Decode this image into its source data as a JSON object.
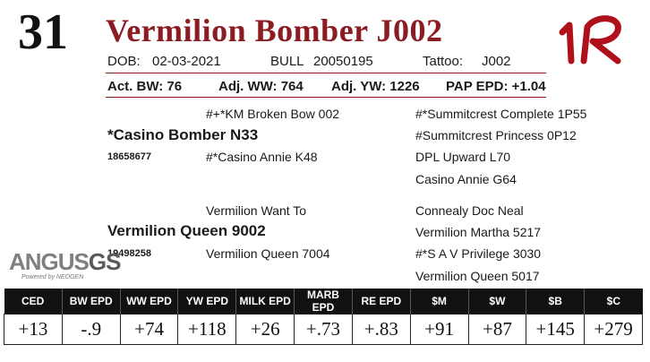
{
  "lot_number": "31",
  "animal_name": "Vermilion Bomber J002",
  "brand_mark": "1R",
  "info": {
    "dob_label": "DOB:",
    "dob": "02-03-2021",
    "bull_label": "BULL",
    "bull_id": "20050195",
    "tattoo_label": "Tattoo:",
    "tattoo": "J002"
  },
  "stats": {
    "act_bw": "Act. BW: 76",
    "adj_ww": "Adj. WW: 764",
    "adj_yw": "Adj. YW: 1226",
    "pap_epd": "PAP EPD: +1.04"
  },
  "pedigree": {
    "sire": "*Casino Bomber N33",
    "sire_reg": "18658677",
    "sire_sire": "#+*KM Broken Bow 002",
    "sire_dam": "#*Casino Annie K48",
    "sire_sire_sire": "#*Summitcrest Complete 1P55",
    "sire_sire_dam": "#Summitcrest Princess 0P12",
    "sire_dam_sire": "DPL Upward L70",
    "sire_dam_dam": "Casino Annie G64",
    "dam": "Vermilion Queen 9002",
    "dam_reg": "19498258",
    "dam_sire": "Vermilion Want To",
    "dam_dam": "Vermilion Queen 7004",
    "dam_sire_sire": "Connealy Doc Neal",
    "dam_sire_dam": "Vermilion Martha 5217",
    "dam_dam_sire": "#*S A V Privilege 3030",
    "dam_dam_dam": "Vermilion Queen 5017"
  },
  "logo": {
    "main": "ANGUS",
    "suffix": "GS",
    "sub": "Powered by NEOGEN"
  },
  "epd": {
    "headers": [
      "CED",
      "BW EPD",
      "WW EPD",
      "YW EPD",
      "MILK EPD",
      "MARB EPD",
      "RE EPD",
      "$M",
      "$W",
      "$B",
      "$C"
    ],
    "values": [
      "+13",
      "-.9",
      "+74",
      "+118",
      "+26",
      "+.73",
      "+.83",
      "+91",
      "+87",
      "+145",
      "+279"
    ]
  },
  "colors": {
    "accent": "#8a1c22",
    "header_bg": "#111111"
  }
}
